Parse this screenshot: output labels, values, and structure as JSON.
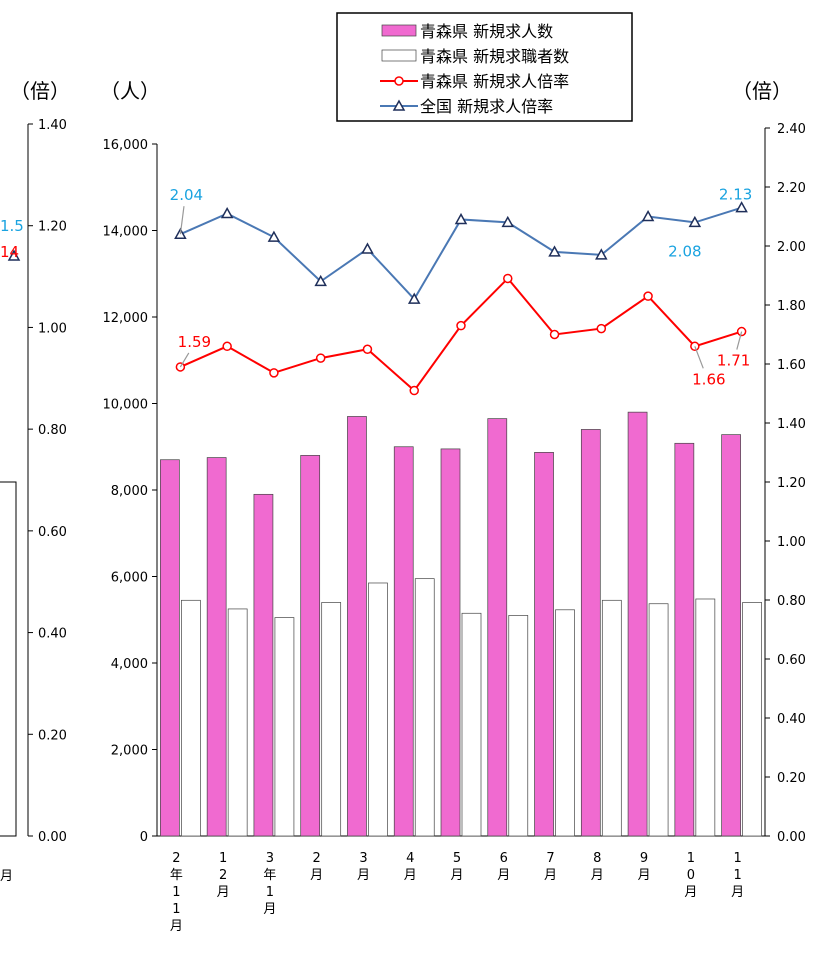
{
  "chart_data": {
    "type": "bar",
    "categories": [
      "2年11月",
      "12月",
      "3年1月",
      "2月",
      "3月",
      "4月",
      "5月",
      "6月",
      "7月",
      "8月",
      "9月",
      "10月",
      "11月"
    ],
    "category_lines": [
      [
        "2",
        "年",
        "1",
        "1",
        "月"
      ],
      [
        "1",
        "2",
        "月"
      ],
      [
        "3",
        "年",
        "1",
        "月"
      ],
      [
        "2",
        "月"
      ],
      [
        "3",
        "月"
      ],
      [
        "4",
        "月"
      ],
      [
        "5",
        "月"
      ],
      [
        "6",
        "月"
      ],
      [
        "7",
        "月"
      ],
      [
        "8",
        "月"
      ],
      [
        "9",
        "月"
      ],
      [
        "1",
        "0",
        "月"
      ],
      [
        "1",
        "1",
        "月"
      ]
    ],
    "series": [
      {
        "name": "青森県 新規求人数",
        "type": "bar",
        "axis": "left",
        "color": "#f06ad0",
        "values": [
          8700,
          8750,
          7900,
          8800,
          9700,
          9000,
          8950,
          9650,
          8870,
          9400,
          9800,
          9080,
          9280
        ]
      },
      {
        "name": "青森県 新規求職者数",
        "type": "bar",
        "axis": "left",
        "color": "#ffffff",
        "values": [
          5450,
          5250,
          5050,
          5400,
          5850,
          5950,
          5150,
          5100,
          5230,
          5450,
          5370,
          5480,
          5400
        ]
      },
      {
        "name": "青森県 新規求人倍率",
        "type": "line",
        "axis": "right",
        "color": "#ff0000",
        "values": [
          1.59,
          1.66,
          1.57,
          1.62,
          1.65,
          1.51,
          1.73,
          1.89,
          1.7,
          1.72,
          1.83,
          1.66,
          1.71
        ]
      },
      {
        "name": "全国  新規求人倍率",
        "type": "line",
        "axis": "right",
        "color": "#4a78b4",
        "values": [
          2.04,
          2.11,
          2.03,
          1.88,
          1.99,
          1.82,
          2.09,
          2.08,
          1.98,
          1.97,
          2.1,
          2.08,
          2.13
        ]
      }
    ],
    "y_left": {
      "unit": "（人）",
      "min": 0,
      "max": 16000,
      "ticks": [
        "0",
        "2,000",
        "4,000",
        "6,000",
        "8,000",
        "10,000",
        "12,000",
        "14,000",
        "16,000"
      ]
    },
    "y_right": {
      "unit": "（倍）",
      "min": 0,
      "max": 2.4,
      "ticks": [
        "0.00",
        "0.20",
        "0.40",
        "0.60",
        "0.80",
        "1.00",
        "1.20",
        "1.40",
        "1.60",
        "1.80",
        "2.00",
        "2.20",
        "2.40"
      ]
    },
    "data_labels": [
      {
        "series": 3,
        "index": 0,
        "text": "2.04"
      },
      {
        "series": 3,
        "index": 11,
        "text": "2.08"
      },
      {
        "series": 3,
        "index": 12,
        "text": "2.13"
      },
      {
        "series": 2,
        "index": 0,
        "text": "1.59"
      },
      {
        "series": 2,
        "index": 11,
        "text": "1.66"
      },
      {
        "series": 2,
        "index": 12,
        "text": "1.71"
      }
    ],
    "legend_position": "top"
  },
  "left_fragment": {
    "unit": "（倍）",
    "ticks": [
      "0.00",
      "0.20",
      "0.40",
      "0.60",
      "0.80",
      "1.00",
      "1.20",
      "1.40"
    ],
    "cut_labels": [
      {
        "text": "1.5",
        "color": "#1aa3e0"
      },
      {
        "text": "14",
        "color": "#ff0000"
      }
    ],
    "month_char": "月"
  }
}
